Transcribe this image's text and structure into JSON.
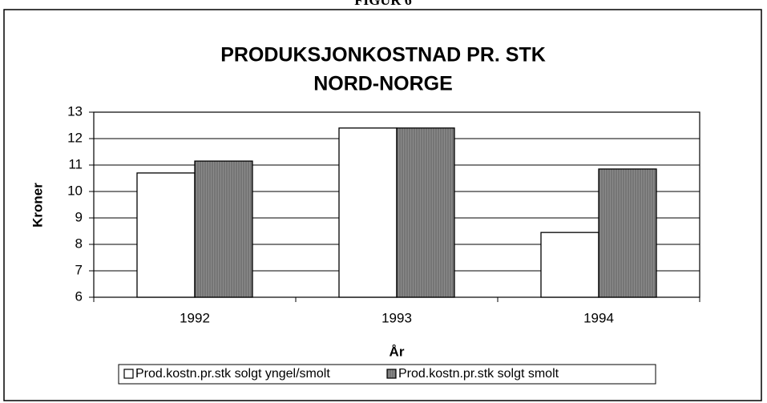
{
  "figure_label": "FIGUR 6",
  "chart_data": {
    "type": "bar",
    "title": "PRODUKSJONKOSTNAD PR. STK",
    "subtitle": "NORD-NORGE",
    "x_label": "År",
    "y_label": "Kroner",
    "categories": [
      "1992",
      "1993",
      "1994"
    ],
    "series": [
      {
        "name": "Prod.kostn.pr.stk solgt yngel/smolt",
        "color": "#ffffff",
        "values": [
          10.7,
          12.4,
          8.45
        ]
      },
      {
        "name": "Prod.kostn.pr.stk solgt smolt",
        "color": "#8a8a8a",
        "values": [
          11.15,
          12.4,
          10.85
        ]
      }
    ],
    "ylim": [
      6,
      13
    ],
    "yticks": [
      6,
      7,
      8,
      9,
      10,
      11,
      12,
      13
    ],
    "grid": true,
    "legend": "bottom"
  }
}
